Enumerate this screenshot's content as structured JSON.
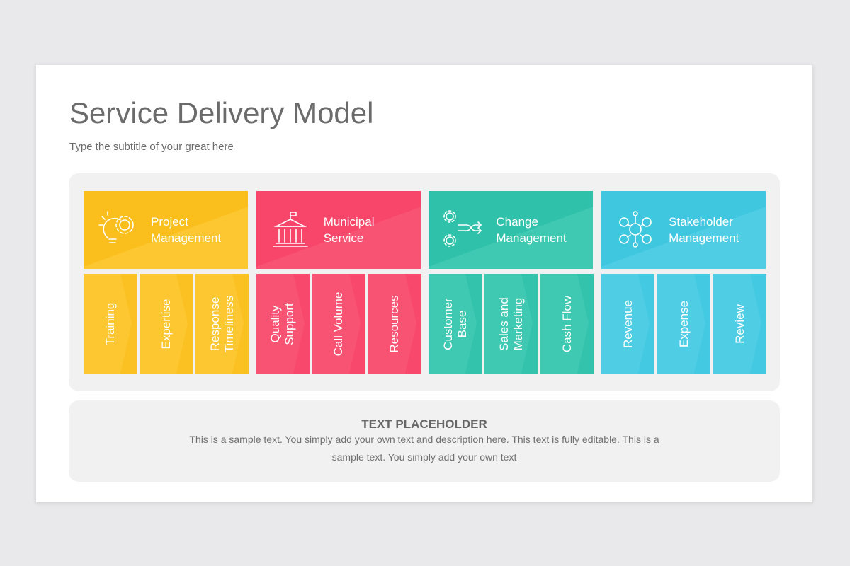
{
  "header": {
    "title": "Service Delivery Model",
    "subtitle": "Type the subtitle of your great here"
  },
  "groups": [
    {
      "title": "Project Management",
      "items": [
        "Training",
        "Expertise",
        "Response Timeliness"
      ]
    },
    {
      "title": "Municipal Service",
      "items": [
        "Quality Support",
        "Call Volume",
        "Resources"
      ]
    },
    {
      "title": "Change Management",
      "items": [
        "Customer Base",
        "Sales and Marketing",
        "Cash Flow"
      ]
    },
    {
      "title": "Stakeholder Management",
      "items": [
        "Revenue",
        "Expense",
        "Review"
      ]
    }
  ],
  "footer": {
    "title": "TEXT PLACEHOLDER",
    "text": "This is a sample text. You simply add your own text and description here. This text is fully editable. This is a sample text. You simply add your own text"
  }
}
